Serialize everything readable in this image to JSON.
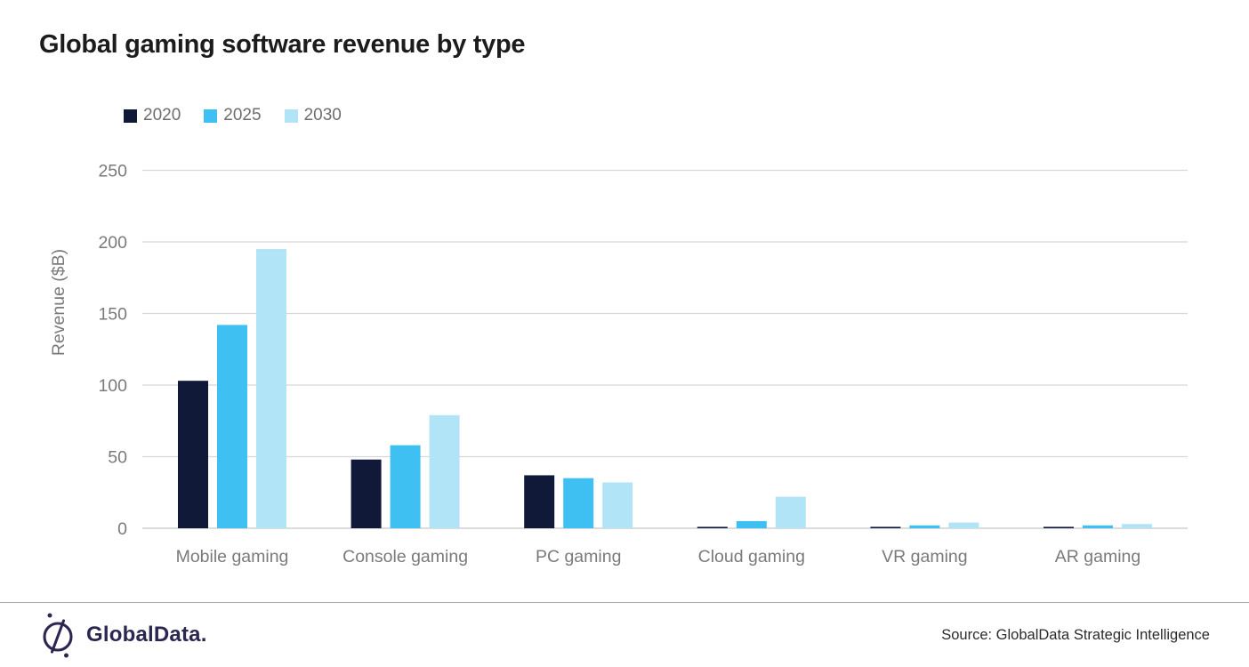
{
  "title": "Global gaming software revenue by type",
  "chart_data": {
    "type": "bar",
    "categories": [
      "Mobile gaming",
      "Console gaming",
      "PC gaming",
      "Cloud gaming",
      "VR gaming",
      "AR gaming"
    ],
    "series": [
      {
        "name": "2020",
        "color": "#101a38",
        "values": [
          103,
          48,
          37,
          1,
          1,
          1
        ]
      },
      {
        "name": "2025",
        "color": "#3ec0f2",
        "values": [
          142,
          58,
          35,
          5,
          2,
          2
        ]
      },
      {
        "name": "2030",
        "color": "#b2e4f8",
        "values": [
          195,
          79,
          32,
          22,
          4,
          3
        ]
      }
    ],
    "title": "Global gaming software revenue by type",
    "xlabel": "",
    "ylabel": "Revenue ($B)",
    "ylim": [
      0,
      250
    ],
    "yticks": [
      0,
      50,
      100,
      150,
      200,
      250
    ],
    "grid": true,
    "legend_position": "top-left"
  },
  "footer": {
    "logo_text": "GlobalData.",
    "source": "Source: GlobalData Strategic Intelligence"
  },
  "colors": {
    "title_text": "#1c1c1c",
    "axis_text": "#7a7a7a",
    "legend_text": "#6e6e6e",
    "gridline": "#d8d8d8",
    "baseline": "#c6c6c6",
    "divider": "#a9a9a9",
    "logo": "#2b2750",
    "source_text": "#2b2b2b",
    "background": "#ffffff"
  }
}
